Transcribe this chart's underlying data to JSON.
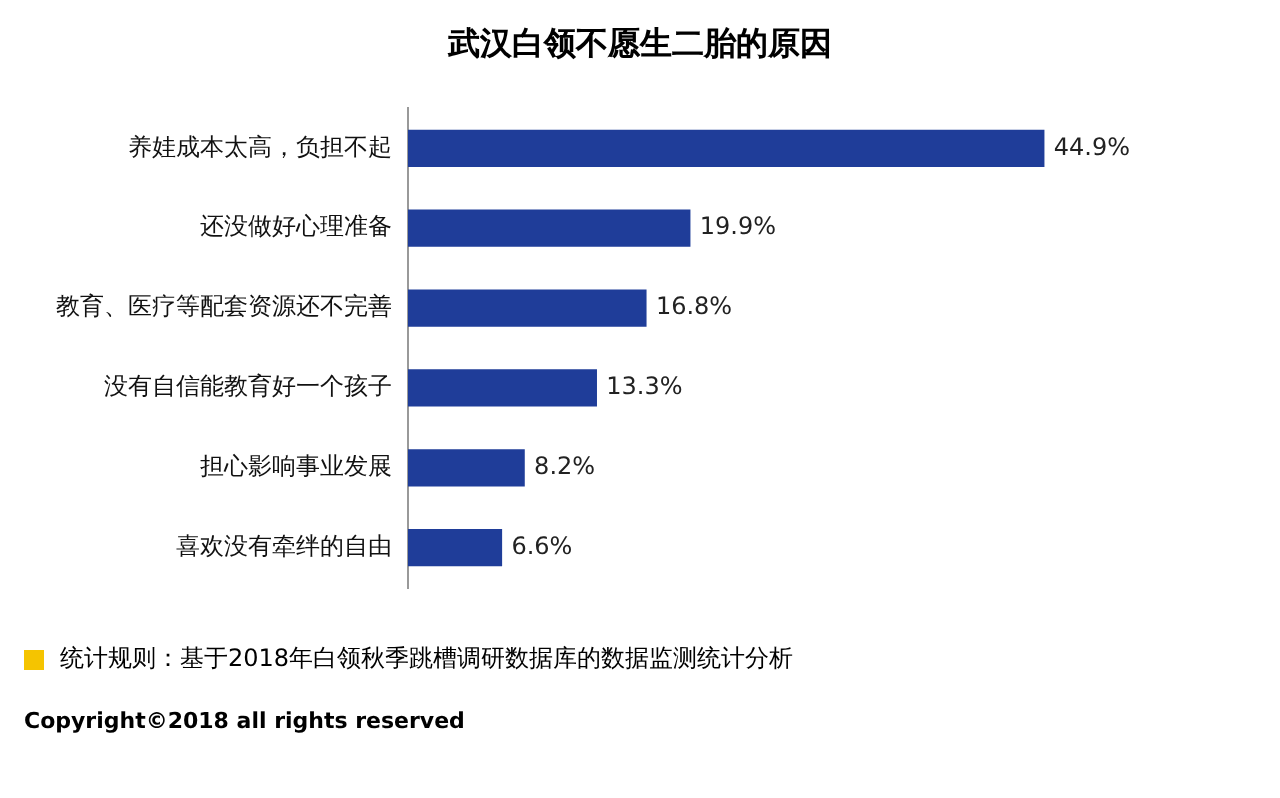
{
  "chart_data": {
    "type": "bar",
    "orientation": "horizontal",
    "title": "武汉白领不愿生二胎的原因",
    "categories": [
      "养娃成本太高，负担不起",
      "还没做好心理准备",
      "教育、医疗等配套资源还不完善",
      "没有自信能教育好一个孩子",
      "担心影响事业发展",
      "喜欢没有牵绊的自由"
    ],
    "values": [
      44.9,
      19.9,
      16.8,
      13.3,
      8.2,
      6.6
    ],
    "value_labels": [
      "44.9%",
      "19.9%",
      "16.8%",
      "13.3%",
      "8.2%",
      "6.6%"
    ],
    "color": "#1f3d99",
    "annotations": [
      "统计规则：基于2018年白领秋季跳槽调研数据库的数据监测统计分析",
      "Copyright©2018 all rights reserved"
    ]
  }
}
